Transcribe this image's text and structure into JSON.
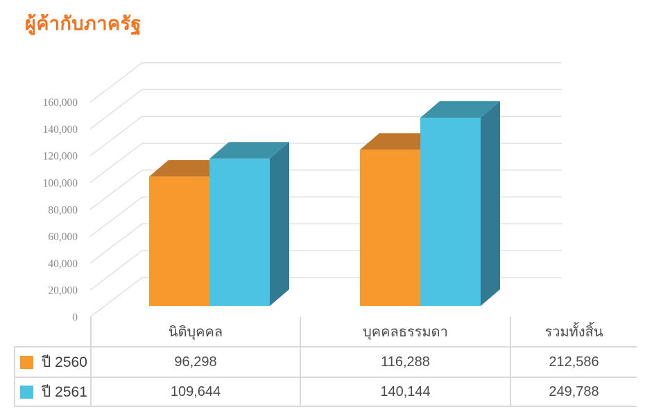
{
  "title": {
    "text": "ผู้ค้ากับภาครัฐ",
    "color": "#F4701D"
  },
  "chart_data": {
    "type": "bar",
    "projection": "3d",
    "title": "ผู้ค้ากับภาครัฐ",
    "categories": [
      "นิติบุคคล",
      "บุคคลธรรมดา"
    ],
    "series": [
      {
        "name": "ปี 2560",
        "color": "#F8992E",
        "color_top": "#C0772B",
        "color_side": "#A96524",
        "values": [
          96298,
          116288
        ],
        "total": 212586
      },
      {
        "name": "ปี 2561",
        "color": "#4DC3E3",
        "color_top": "#3E92A8",
        "color_side": "#327A92",
        "values": [
          109644,
          140144
        ],
        "total": 249788
      }
    ],
    "xlabel": "",
    "ylabel": "",
    "ylim": [
      0,
      160000
    ],
    "ytick_step": 20000,
    "yticks": [
      "0",
      "20,000",
      "40,000",
      "60,000",
      "80,000",
      "100,000",
      "120,000",
      "140,000",
      "160,000"
    ],
    "grid": true,
    "legend_position": "table-rows"
  },
  "table": {
    "columns": [
      "นิติบุคคล",
      "บุคคลธรรมดา",
      "รวมทั้งสิ้น"
    ],
    "rows": [
      {
        "label": "ปี 2560",
        "swatch_color": "#F8992E",
        "values": [
          "96,298",
          "116,288",
          "212,586"
        ]
      },
      {
        "label": "ปี 2561",
        "swatch_color": "#4DC3E3",
        "values": [
          "109,644",
          "140,144",
          "249,788"
        ]
      }
    ]
  },
  "colors": {
    "grid": "#E0E0E0",
    "table_border": "#D9D9D9",
    "tick_text": "#8A8A8A",
    "table_text": "#4A4A4A"
  }
}
